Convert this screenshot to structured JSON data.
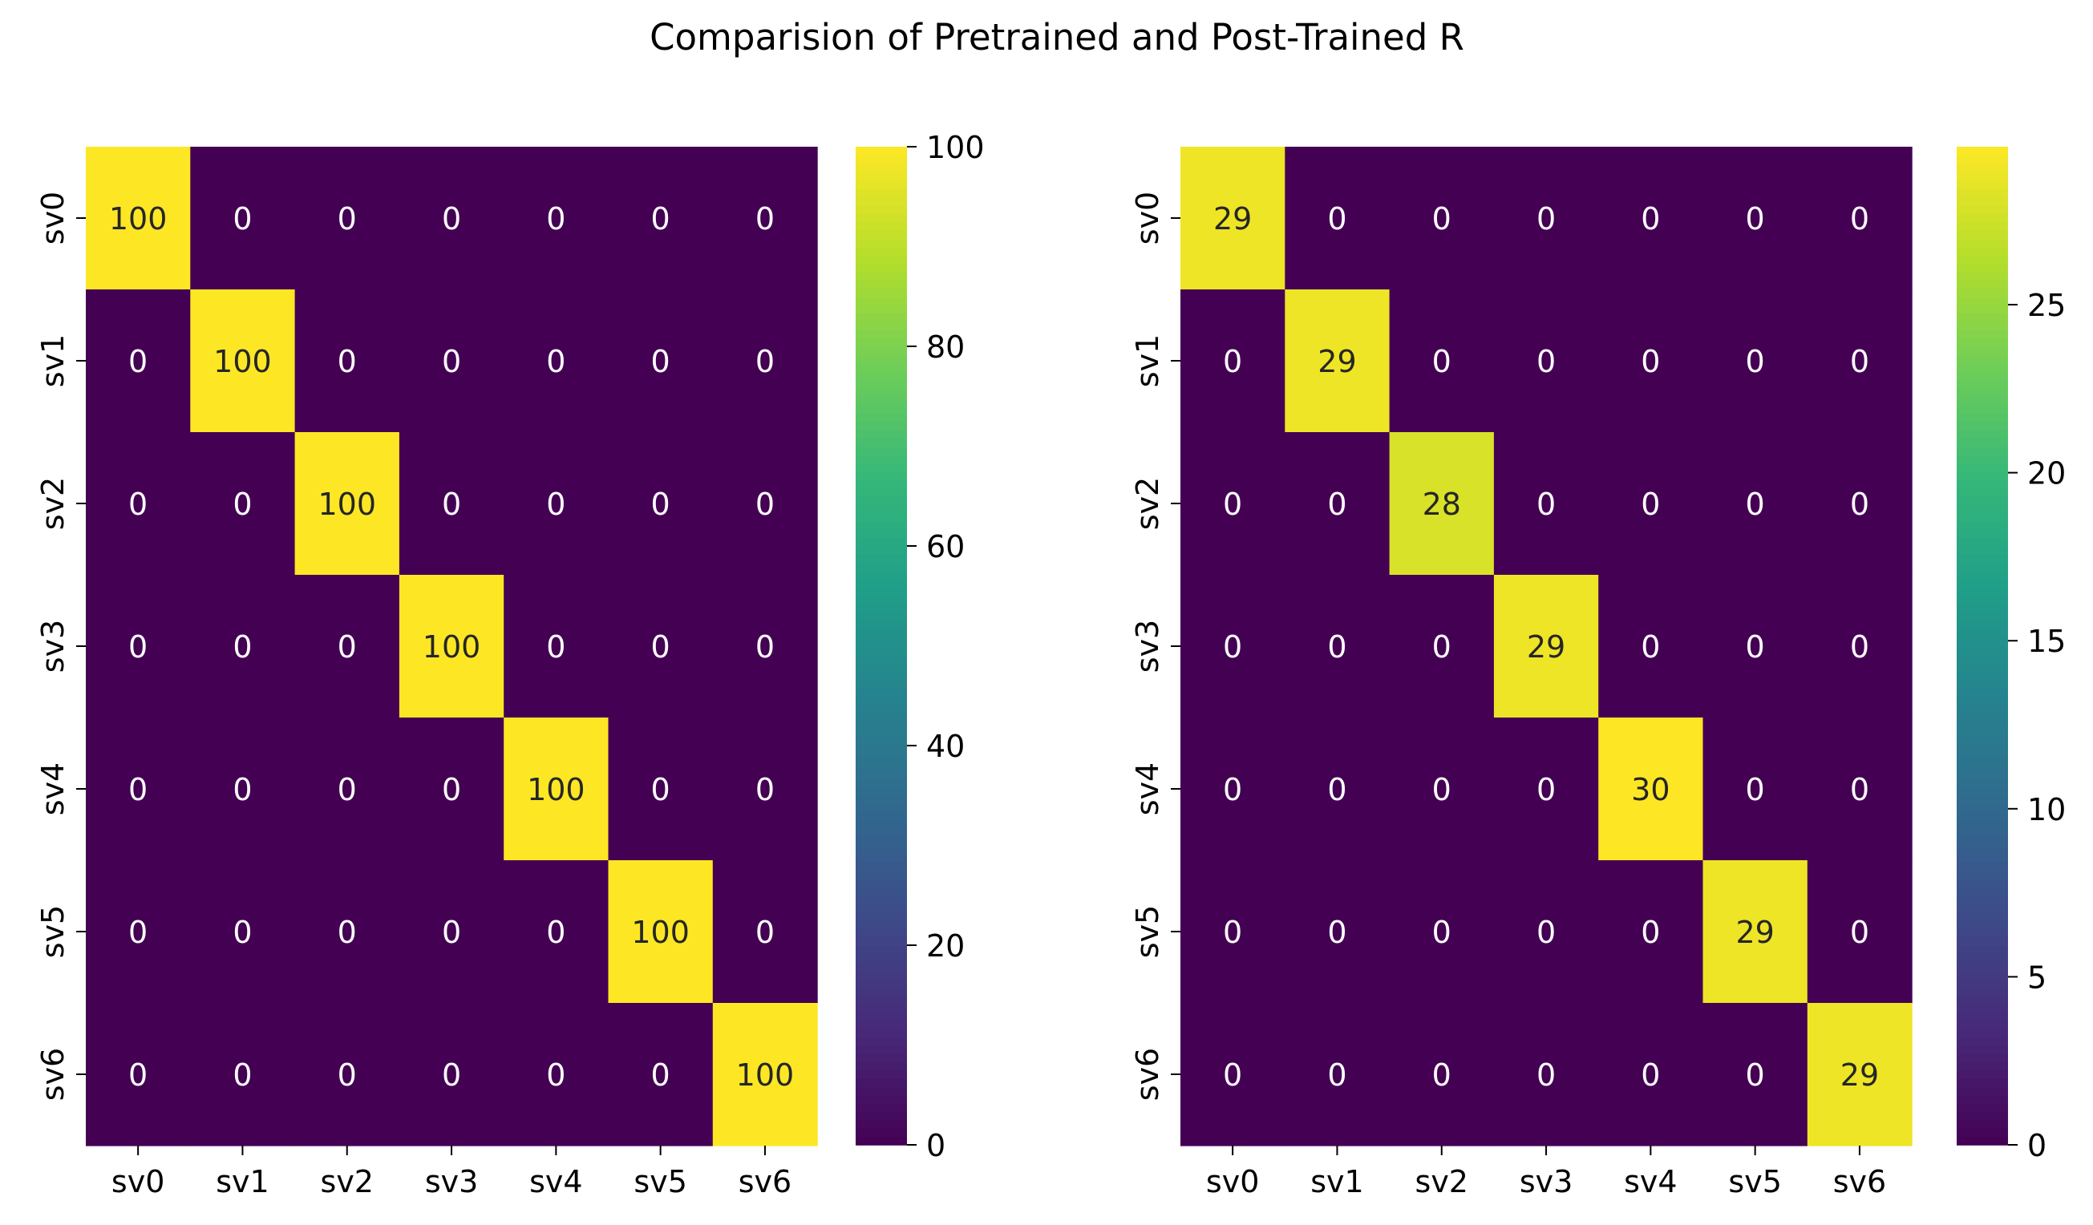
{
  "title": "Comparision of Pretrained and Post-Trained R",
  "colormap": [
    "#440154",
    "#482878",
    "#3e4989",
    "#31688e",
    "#26828e",
    "#1f9e89",
    "#35b779",
    "#6ece58",
    "#b5de2b",
    "#fde725"
  ],
  "annotation_colors": {
    "on_dark": "#ffffff",
    "on_light": "#262626"
  },
  "chart_data": [
    {
      "type": "heatmap",
      "name": "pretrained",
      "x_categories": [
        "sv0",
        "sv1",
        "sv2",
        "sv3",
        "sv4",
        "sv5",
        "sv6"
      ],
      "y_categories": [
        "sv0",
        "sv1",
        "sv2",
        "sv3",
        "sv4",
        "sv5",
        "sv6"
      ],
      "values": [
        [
          100,
          0,
          0,
          0,
          0,
          0,
          0
        ],
        [
          0,
          100,
          0,
          0,
          0,
          0,
          0
        ],
        [
          0,
          0,
          100,
          0,
          0,
          0,
          0
        ],
        [
          0,
          0,
          0,
          100,
          0,
          0,
          0
        ],
        [
          0,
          0,
          0,
          0,
          100,
          0,
          0
        ],
        [
          0,
          0,
          0,
          0,
          0,
          100,
          0
        ],
        [
          0,
          0,
          0,
          0,
          0,
          0,
          100
        ]
      ],
      "vmin": 0,
      "vmax": 100,
      "colorbar_ticks": [
        0,
        20,
        40,
        60,
        80,
        100
      ]
    },
    {
      "type": "heatmap",
      "name": "post-trained",
      "x_categories": [
        "sv0",
        "sv1",
        "sv2",
        "sv3",
        "sv4",
        "sv5",
        "sv6"
      ],
      "y_categories": [
        "sv0",
        "sv1",
        "sv2",
        "sv3",
        "sv4",
        "sv5",
        "sv6"
      ],
      "values": [
        [
          29,
          0,
          0,
          0,
          0,
          0,
          0
        ],
        [
          0,
          29,
          0,
          0,
          0,
          0,
          0
        ],
        [
          0,
          0,
          28,
          0,
          0,
          0,
          0
        ],
        [
          0,
          0,
          0,
          29,
          0,
          0,
          0
        ],
        [
          0,
          0,
          0,
          0,
          30,
          0,
          0
        ],
        [
          0,
          0,
          0,
          0,
          0,
          29,
          0
        ],
        [
          0,
          0,
          0,
          0,
          0,
          0,
          29
        ]
      ],
      "vmin": 0,
      "vmax": 29.7,
      "colorbar_ticks": [
        0,
        5,
        10,
        15,
        20,
        25
      ]
    }
  ]
}
